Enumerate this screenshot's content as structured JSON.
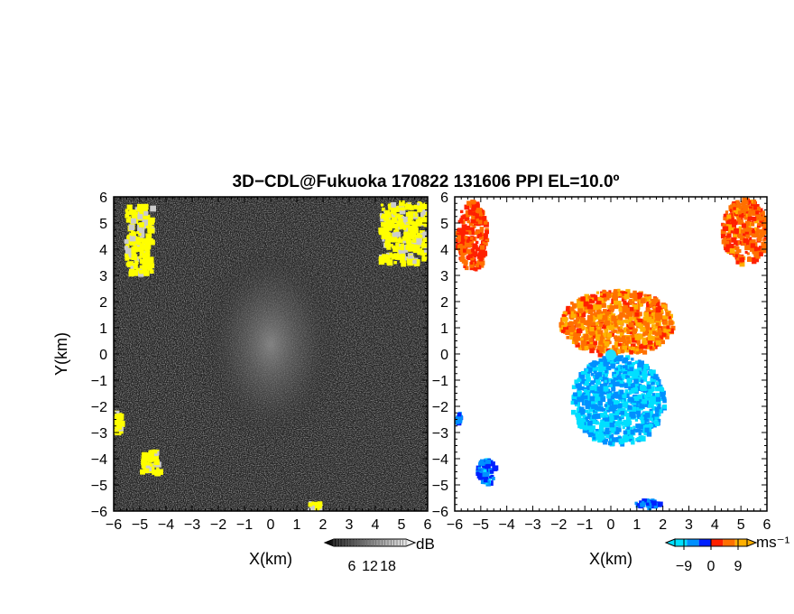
{
  "title": "3D−CDL@Fukuoka 170822 131606 PPI EL=10.0º",
  "chart_data": [
    {
      "type": "heatmap",
      "name": "reflectivity-ppi",
      "xlabel": "X(km)",
      "ylabel": "Y(km)",
      "xlim": [
        -6,
        6
      ],
      "ylim": [
        -6,
        6
      ],
      "xticks": [
        -6,
        -5,
        -4,
        -3,
        -2,
        -1,
        0,
        1,
        2,
        3,
        4,
        5,
        6
      ],
      "yticks": [
        -6,
        -5,
        -4,
        -3,
        -2,
        -1,
        0,
        1,
        2,
        3,
        4,
        5,
        6
      ],
      "colorbar": {
        "unit": "dB",
        "ticks": [
          6,
          12,
          18
        ],
        "range": [
          0,
          24
        ],
        "colors": [
          "#000000",
          "#ffffff"
        ]
      },
      "clutter_color": "#ffff00",
      "echo_regions": [
        {
          "x": [
            -5.6,
            -4.6
          ],
          "y": [
            3.0,
            5.9
          ]
        },
        {
          "x": [
            4.1,
            5.9
          ],
          "y": [
            3.4,
            6.0
          ]
        },
        {
          "x": [
            -5.0,
            -4.3
          ],
          "y": [
            -4.5,
            -3.6
          ]
        },
        {
          "x": [
            1.4,
            1.8
          ],
          "y": [
            -5.9,
            -5.6
          ]
        },
        {
          "x": [
            -6.0,
            -5.8
          ],
          "y": [
            -3.0,
            -2.1
          ]
        }
      ]
    },
    {
      "type": "heatmap",
      "name": "doppler-velocity-ppi",
      "xlabel": "X(km)",
      "xlim": [
        -6,
        6
      ],
      "ylim": [
        -6,
        6
      ],
      "xticks": [
        -6,
        -5,
        -4,
        -3,
        -2,
        -1,
        0,
        1,
        2,
        3,
        4,
        5,
        6
      ],
      "colorbar": {
        "unit": "ms⁻¹",
        "ticks": [
          -9,
          0,
          9
        ],
        "range": [
          -12,
          12
        ],
        "colors": [
          "#00e0ff",
          "#0090ff",
          "#0020ff",
          "#ff2000",
          "#ff7000",
          "#ffb000"
        ]
      },
      "velocity_regions": [
        {
          "x": [
            -2.0,
            2.4
          ],
          "y": [
            0.0,
            2.5
          ],
          "v": 7
        },
        {
          "x": [
            -1.6,
            2.0
          ],
          "y": [
            -3.4,
            0.0
          ],
          "v": -8
        },
        {
          "x": [
            -6.0,
            -4.8
          ],
          "y": [
            3.2,
            5.9
          ],
          "v": 4
        },
        {
          "x": [
            4.2,
            6.0
          ],
          "y": [
            3.5,
            6.0
          ],
          "v": 5
        },
        {
          "x": [
            -5.2,
            -4.5
          ],
          "y": [
            -4.9,
            -3.9
          ],
          "v": -5
        },
        {
          "x": [
            -6.0,
            -5.8
          ],
          "y": [
            -2.6,
            -2.2
          ],
          "v": -5
        },
        {
          "x": [
            0.9,
            1.8
          ],
          "y": [
            -5.8,
            -5.5
          ],
          "v": -4
        }
      ]
    }
  ]
}
